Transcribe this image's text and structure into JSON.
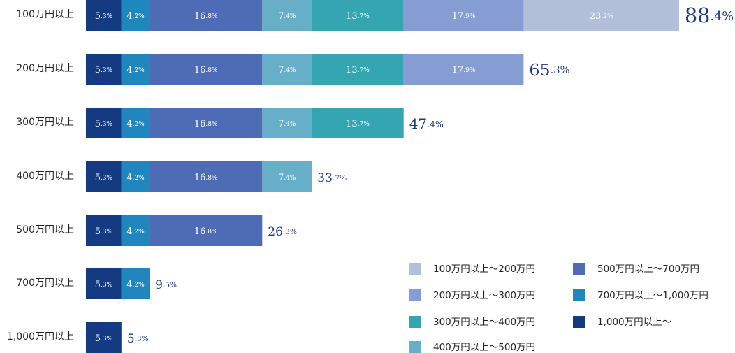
{
  "chart_data": {
    "type": "bar",
    "orientation": "horizontal",
    "stacked": true,
    "categories": [
      "100万円以上",
      "200万円以上",
      "300万円以上",
      "400万円以上",
      "500万円以上",
      "700万円以上",
      "1,000万円以上"
    ],
    "series": [
      {
        "name": "1,000万円以上～",
        "color": "#143a82",
        "values": [
          5.3,
          5.3,
          5.3,
          5.3,
          5.3,
          5.3,
          5.3
        ]
      },
      {
        "name": "700万円以上～1,000万円",
        "color": "#1f86be",
        "values": [
          4.2,
          4.2,
          4.2,
          4.2,
          4.2,
          4.2,
          null
        ]
      },
      {
        "name": "500万円以上～700万円",
        "color": "#4e6cb6",
        "values": [
          16.8,
          16.8,
          16.8,
          16.8,
          16.8,
          null,
          null
        ]
      },
      {
        "name": "400万円以上～500万円",
        "color": "#67afc8",
        "values": [
          7.4,
          7.4,
          7.4,
          7.4,
          null,
          null,
          null
        ]
      },
      {
        "name": "300万円以上～400万円",
        "color": "#34a5b1",
        "values": [
          13.7,
          13.7,
          13.7,
          null,
          null,
          null,
          null
        ]
      },
      {
        "name": "200万円以上～300万円",
        "color": "#859dd2",
        "values": [
          17.9,
          17.9,
          null,
          null,
          null,
          null,
          null
        ]
      },
      {
        "name": "100万円以上～200万円",
        "color": "#b2bfd9",
        "values": [
          23.2,
          null,
          null,
          null,
          null,
          null,
          null
        ]
      }
    ],
    "totals": [
      88.4,
      65.3,
      47.4,
      33.7,
      26.3,
      9.5,
      5.3
    ],
    "unit": "%",
    "xlim": [
      0,
      88.4
    ],
    "grid": false,
    "legend_placement": "bottom-right",
    "legend_order": [
      "100万円以上～200万円",
      "200万円以上～300万円",
      "300万円以上～400万円",
      "400万円以上～500万円",
      "500万円以上～700万円",
      "700万円以上～1,000万円",
      "1,000万円以上～"
    ],
    "total_color": "#1c3a82"
  }
}
